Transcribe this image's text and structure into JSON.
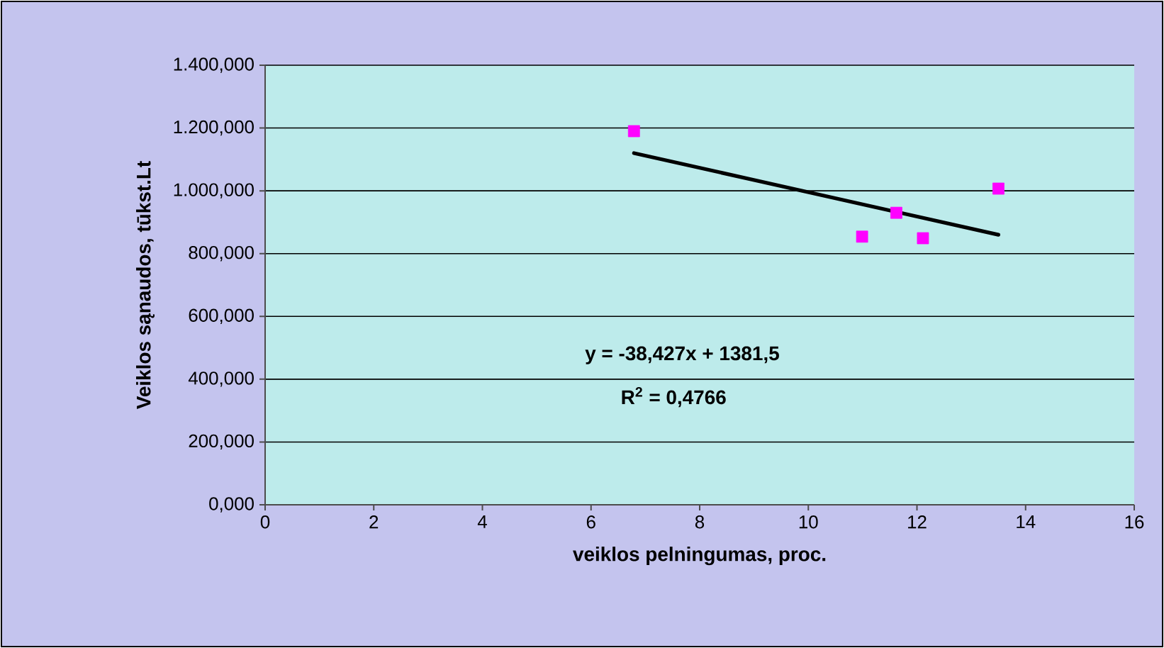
{
  "chart_data": {
    "type": "scatter",
    "xlabel": "veiklos pelningumas, proc.",
    "ylabel": "Veiklos sąnaudos, tūkst.Lt",
    "xlim": [
      0,
      16
    ],
    "xticks": [
      0,
      2,
      4,
      6,
      8,
      10,
      12,
      14,
      16
    ],
    "ylim": [
      0,
      1400
    ],
    "yticks": [
      {
        "value": 0,
        "label": "0,000"
      },
      {
        "value": 200,
        "label": "200,000"
      },
      {
        "value": 400,
        "label": "400,000"
      },
      {
        "value": 600,
        "label": "600,000"
      },
      {
        "value": 800,
        "label": "800,000"
      },
      {
        "value": 1000,
        "label": "1.000,000"
      },
      {
        "value": 1200,
        "label": "1.200,000"
      },
      {
        "value": 1400,
        "label": "1.400,000"
      }
    ],
    "grid": "y",
    "series": [
      {
        "color": "#ff00ff",
        "marker": "square",
        "x": [
          6.79,
          10.99,
          11.62,
          12.11,
          13.5
        ],
        "values": [
          1190,
          854,
          930,
          849,
          1007
        ]
      },
      {
        "type": "line",
        "color": "#000000",
        "marker": "none",
        "line_style": "solid",
        "x": [
          6.79,
          13.5
        ],
        "values": [
          1120,
          860
        ]
      }
    ],
    "annotations": [
      "y = -38,427x + 1381,5",
      "R$^{2}$ = 0,4766"
    ]
  }
}
